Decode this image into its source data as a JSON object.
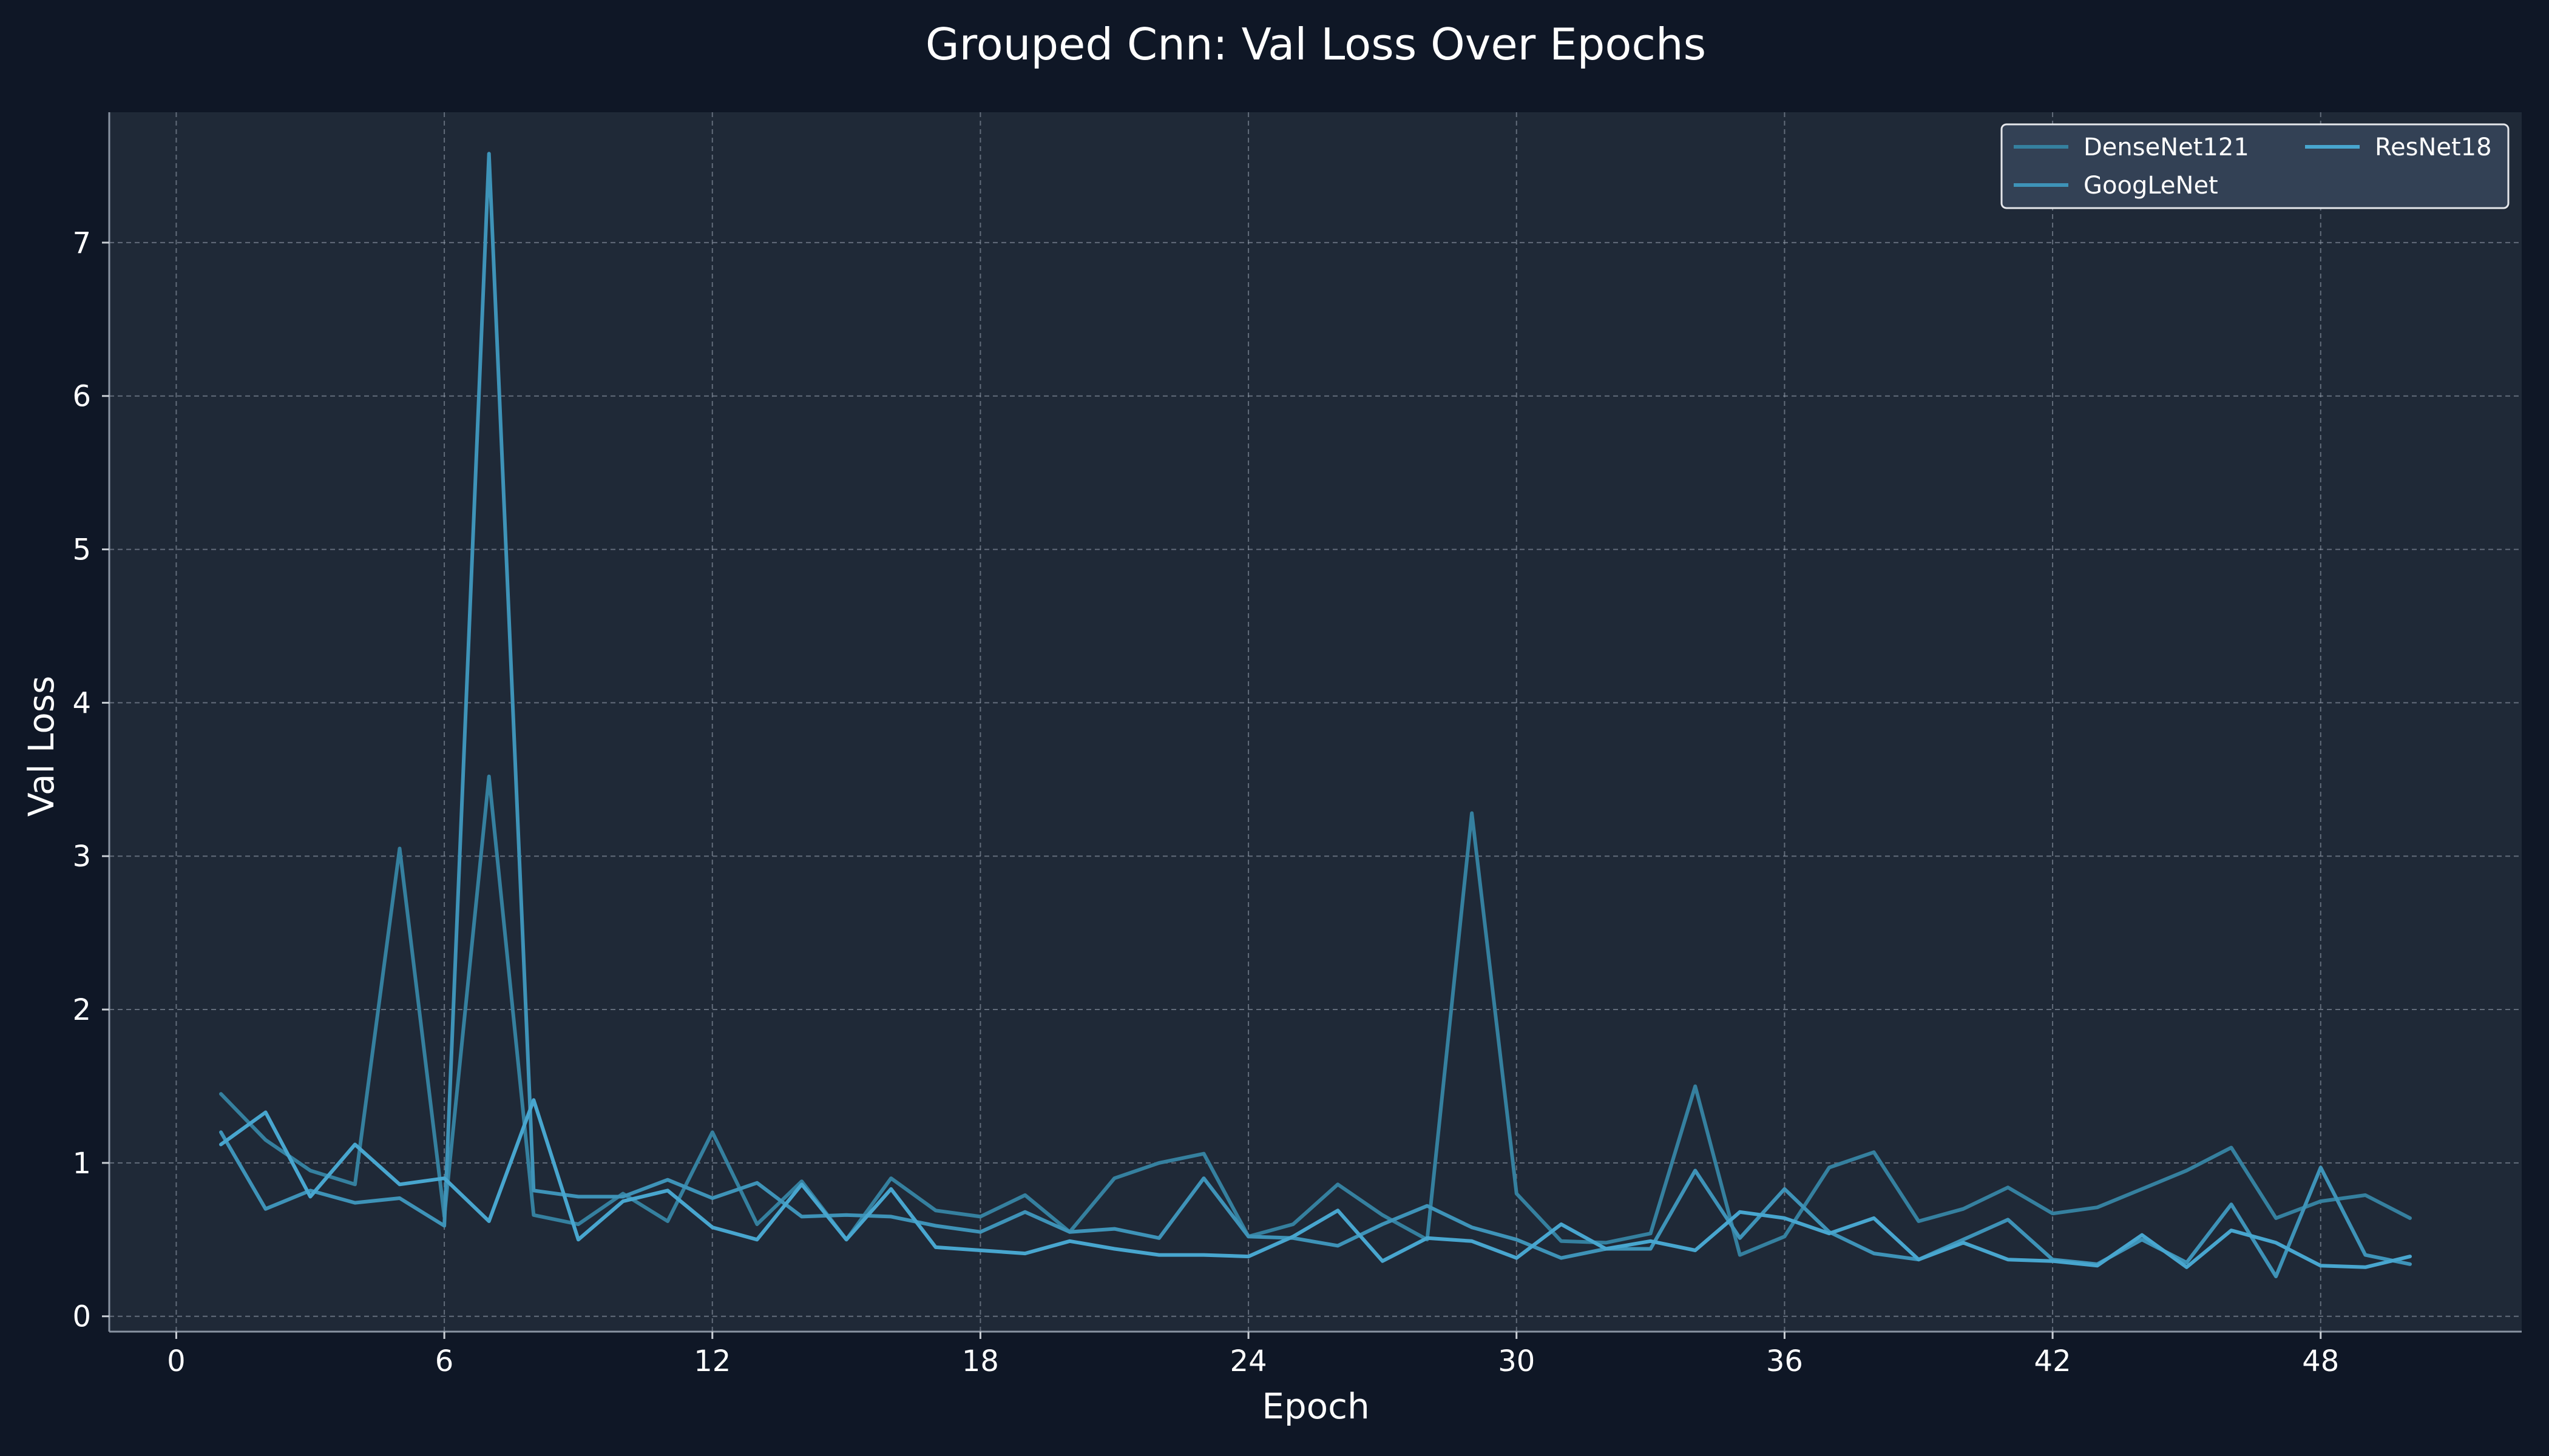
{
  "chart_data": {
    "type": "line",
    "title": "Grouped Cnn: Val Loss Over Epochs",
    "xlabel": "Epoch",
    "ylabel": "Val Loss",
    "xlim": [
      -1.5,
      52.5
    ],
    "ylim": [
      -0.1,
      7.85
    ],
    "xticks": [
      0,
      6,
      12,
      18,
      24,
      30,
      36,
      42,
      48
    ],
    "yticks": [
      0,
      1,
      2,
      3,
      4,
      5,
      6,
      7
    ],
    "grid": true,
    "legend": {
      "placement": "top-right",
      "columns": 2
    },
    "x": [
      1,
      2,
      3,
      4,
      5,
      6,
      7,
      8,
      9,
      10,
      11,
      12,
      13,
      14,
      15,
      16,
      17,
      18,
      19,
      20,
      21,
      22,
      23,
      24,
      25,
      26,
      27,
      28,
      29,
      30,
      31,
      32,
      33,
      34,
      35,
      36,
      37,
      38,
      39,
      40,
      41,
      42,
      43,
      44,
      45,
      46,
      47,
      48,
      49,
      50
    ],
    "series": [
      {
        "name": "DenseNet121",
        "color": "#35809f",
        "values": [
          1.45,
          1.15,
          0.95,
          0.86,
          3.05,
          0.65,
          3.52,
          0.66,
          0.6,
          0.8,
          0.62,
          1.2,
          0.6,
          0.88,
          0.5,
          0.9,
          0.69,
          0.65,
          0.79,
          0.55,
          0.9,
          1.0,
          1.06,
          0.52,
          0.6,
          0.86,
          0.66,
          0.5,
          3.28,
          0.8,
          0.49,
          0.48,
          0.54,
          1.5,
          0.4,
          0.52,
          0.97,
          1.07,
          0.62,
          0.7,
          0.84,
          0.67,
          0.71,
          0.83,
          0.95,
          1.1,
          0.64,
          0.75,
          0.79,
          0.64
        ]
      },
      {
        "name": "GoogLeNet",
        "color": "#3e93b8",
        "values": [
          1.2,
          0.7,
          0.82,
          0.74,
          0.77,
          0.59,
          7.58,
          0.82,
          0.78,
          0.78,
          0.89,
          0.77,
          0.87,
          0.65,
          0.66,
          0.65,
          0.59,
          0.55,
          0.68,
          0.55,
          0.57,
          0.51,
          0.9,
          0.52,
          0.51,
          0.46,
          0.6,
          0.72,
          0.58,
          0.5,
          0.38,
          0.44,
          0.44,
          0.95,
          0.51,
          0.83,
          0.55,
          0.41,
          0.37,
          0.5,
          0.63,
          0.37,
          0.34,
          0.5,
          0.35,
          0.73,
          0.26,
          0.97,
          0.4,
          0.34
        ]
      },
      {
        "name": "ResNet18",
        "color": "#48a6cf",
        "values": [
          1.12,
          1.33,
          0.78,
          1.12,
          0.86,
          0.9,
          0.62,
          1.41,
          0.5,
          0.75,
          0.82,
          0.58,
          0.5,
          0.86,
          0.5,
          0.83,
          0.45,
          0.43,
          0.41,
          0.49,
          0.44,
          0.4,
          0.4,
          0.39,
          0.52,
          0.69,
          0.36,
          0.51,
          0.49,
          0.38,
          0.6,
          0.44,
          0.49,
          0.43,
          0.68,
          0.64,
          0.54,
          0.64,
          0.37,
          0.48,
          0.37,
          0.36,
          0.33,
          0.53,
          0.32,
          0.56,
          0.48,
          0.33,
          0.32,
          0.39
        ]
      }
    ]
  }
}
